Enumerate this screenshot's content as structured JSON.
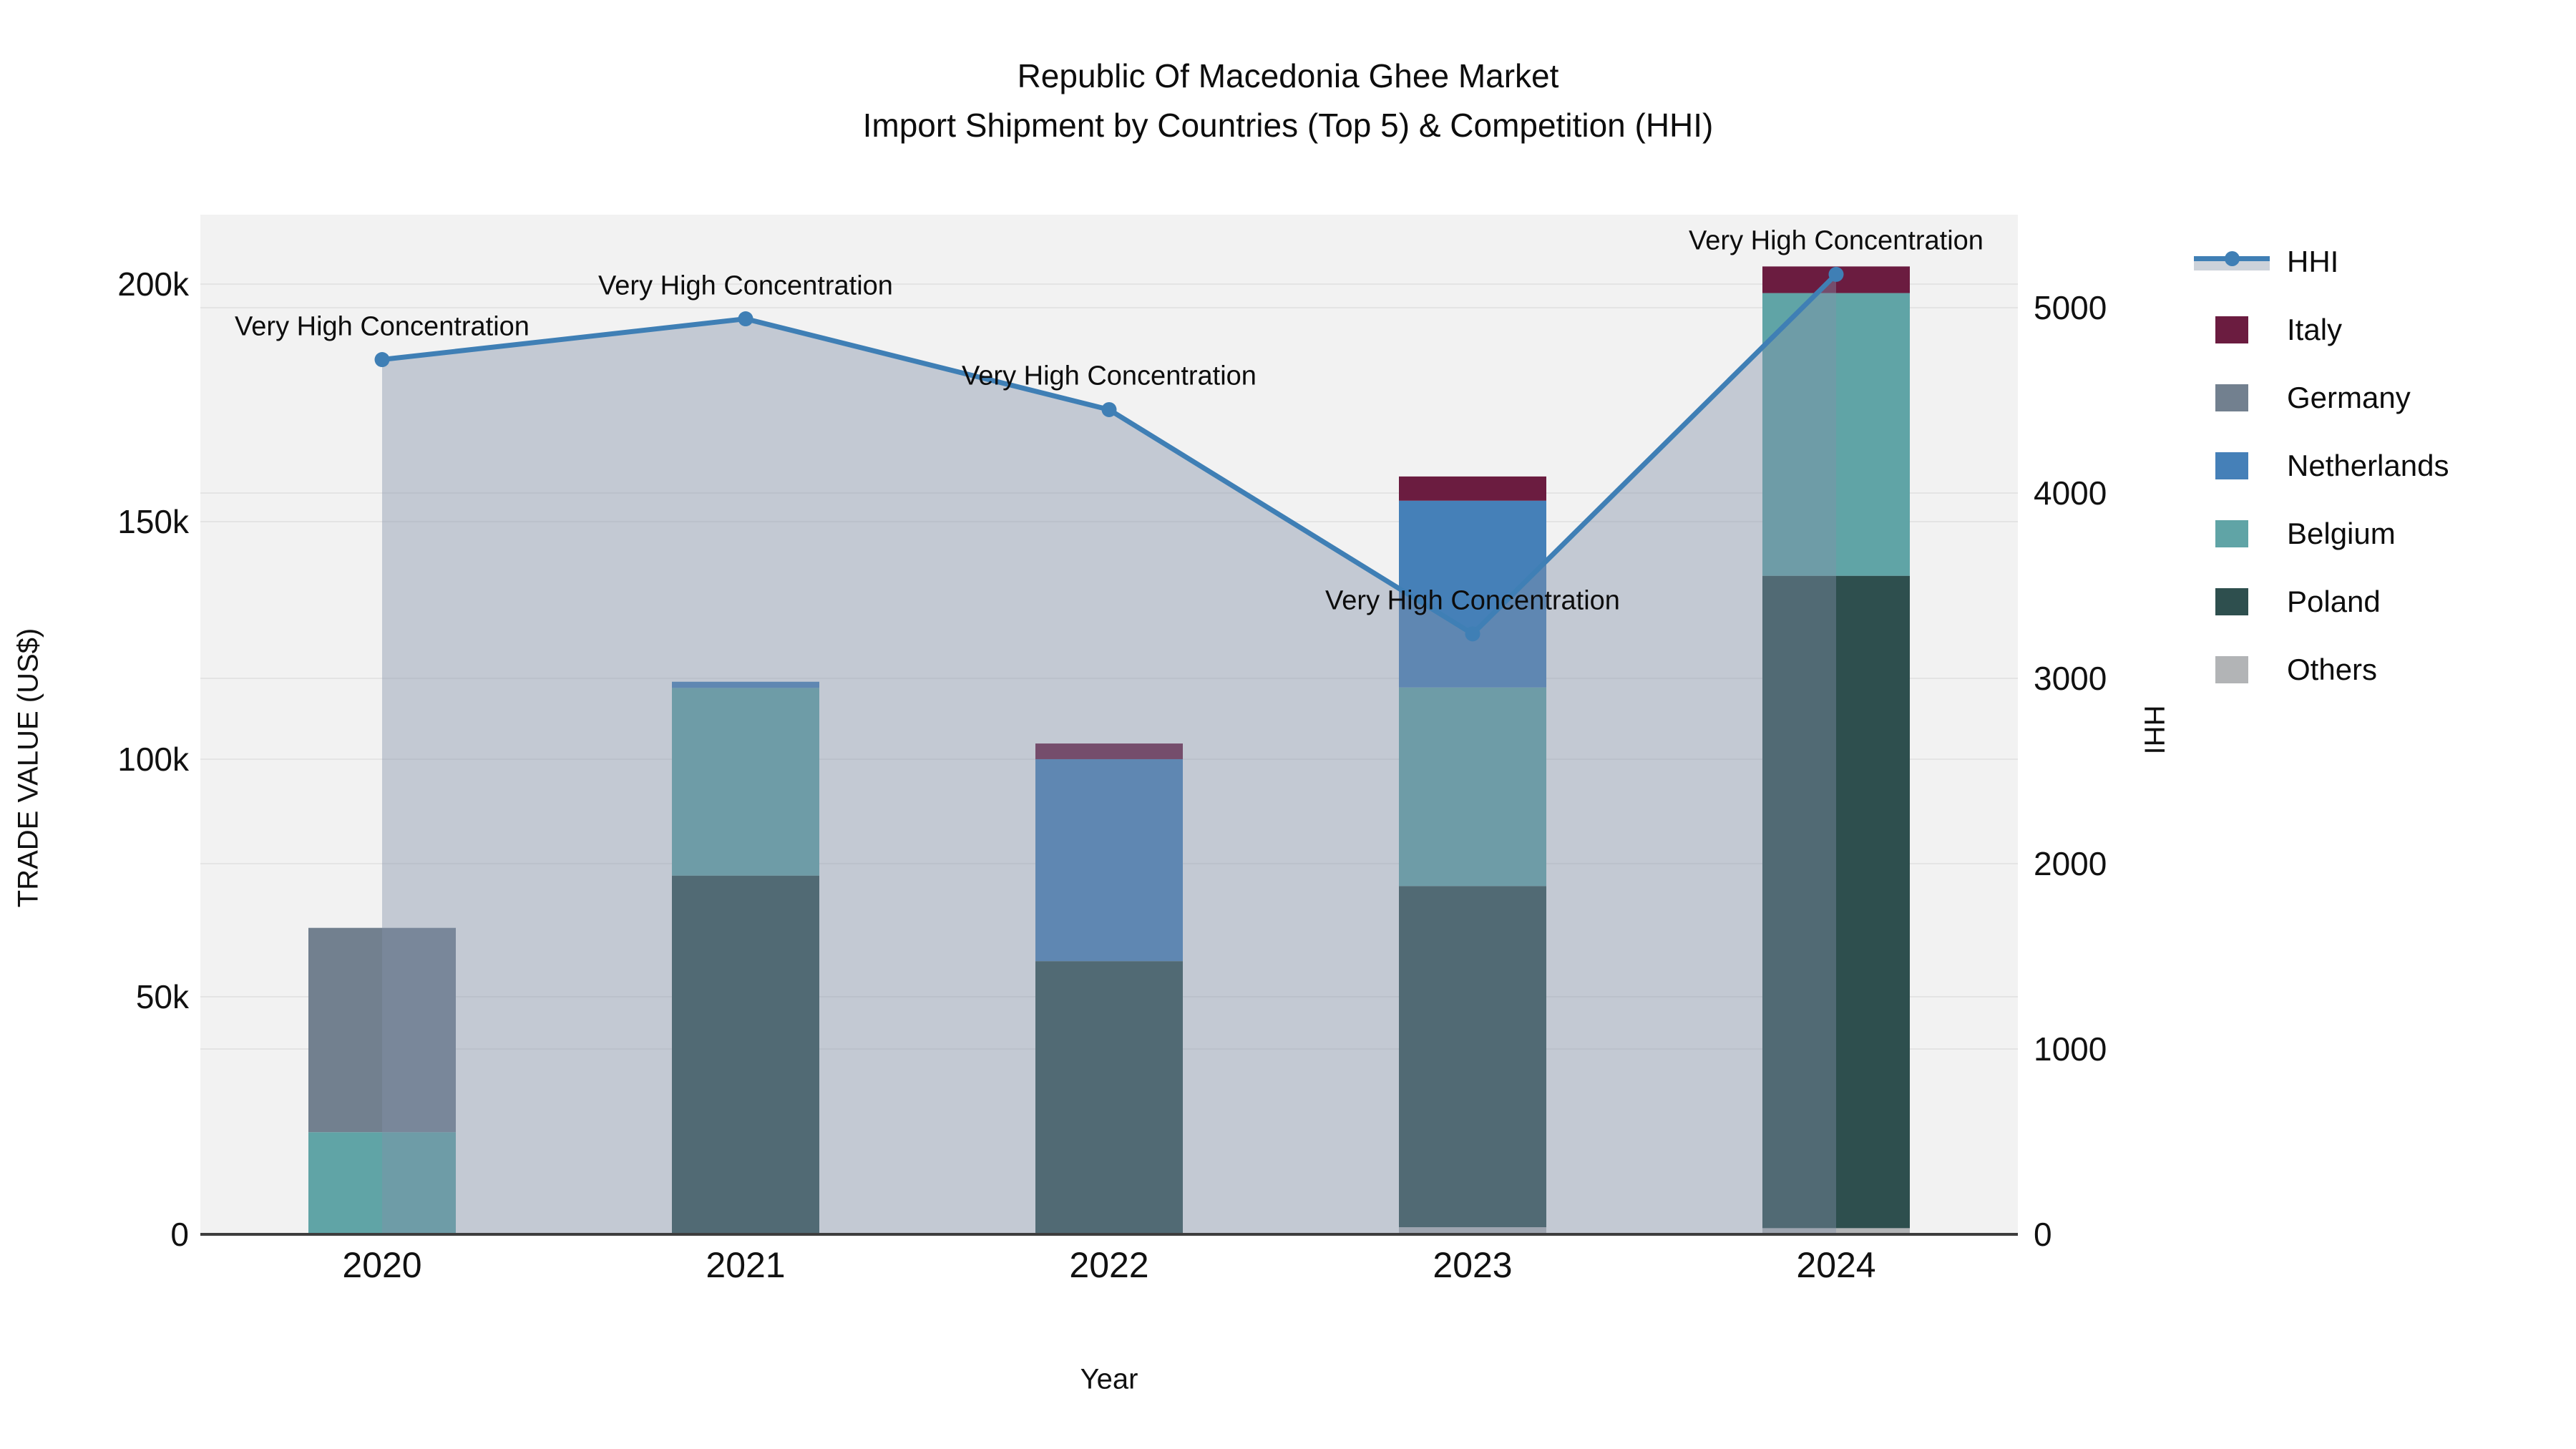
{
  "title": {
    "line1": "Republic Of Macedonia Ghee Market",
    "line2": "Import Shipment by Countries (Top 5) & Competition (HHI)"
  },
  "chart_data": {
    "type": "bar",
    "subtype": "stacked-bar-with-line",
    "categories": [
      "2020",
      "2021",
      "2022",
      "2023",
      "2024"
    ],
    "bar_series": [
      {
        "name": "Others",
        "color": "#b2b4b6",
        "values": [
          0,
          0,
          0,
          1500,
          1300
        ]
      },
      {
        "name": "Poland",
        "color": "#2e4f4e",
        "values": [
          0,
          75500,
          57500,
          71800,
          137300
        ]
      },
      {
        "name": "Belgium",
        "color": "#60a4a6",
        "values": [
          21500,
          39500,
          0,
          41800,
          59500
        ]
      },
      {
        "name": "Netherlands",
        "color": "#4580b8",
        "values": [
          0,
          1300,
          42500,
          39300,
          0
        ]
      },
      {
        "name": "Germany",
        "color": "#72808f",
        "values": [
          43000,
          0,
          0,
          0,
          0
        ]
      },
      {
        "name": "Italy",
        "color": "#6b1c40",
        "values": [
          0,
          0,
          3300,
          5100,
          5600
        ]
      }
    ],
    "bar_totals": [
      64500,
      116300,
      103300,
      159500,
      203700
    ],
    "line_series": {
      "name": "HHI",
      "color": "#3f7fb5",
      "area_fill": "rgba(130,145,170,0.42)",
      "legend_band_color": "#ccd2da",
      "values": [
        4720,
        4940,
        4450,
        3240,
        5180
      ]
    },
    "annotations": [
      "Very High Concentration",
      "Very High Concentration",
      "Very High Concentration",
      "Very High Concentration",
      "Very High Concentration"
    ],
    "xlabel": "Year",
    "ylabel_left": "TRADE VALUE (US$)",
    "ylabel_right": "HHI",
    "yticks_left": {
      "values": [
        0,
        50000,
        100000,
        150000,
        200000
      ],
      "labels": [
        "0",
        "50k",
        "100k",
        "150k",
        "200k"
      ]
    },
    "yticks_right": {
      "values": [
        0,
        1000,
        2000,
        3000,
        4000,
        5000
      ],
      "labels": [
        "0",
        "1000",
        "2000",
        "3000",
        "4000",
        "5000"
      ]
    },
    "ylim_left": [
      0,
      214600
    ],
    "ylim_right": [
      0,
      5502
    ],
    "legend_order": [
      "HHI",
      "Italy",
      "Germany",
      "Netherlands",
      "Belgium",
      "Poland",
      "Others"
    ],
    "grid": true,
    "legend_position": "right",
    "plot_background": "#f2f2f2",
    "gridline_color": "#e4e4e4",
    "baseline_color": "#3d3d3d"
  }
}
